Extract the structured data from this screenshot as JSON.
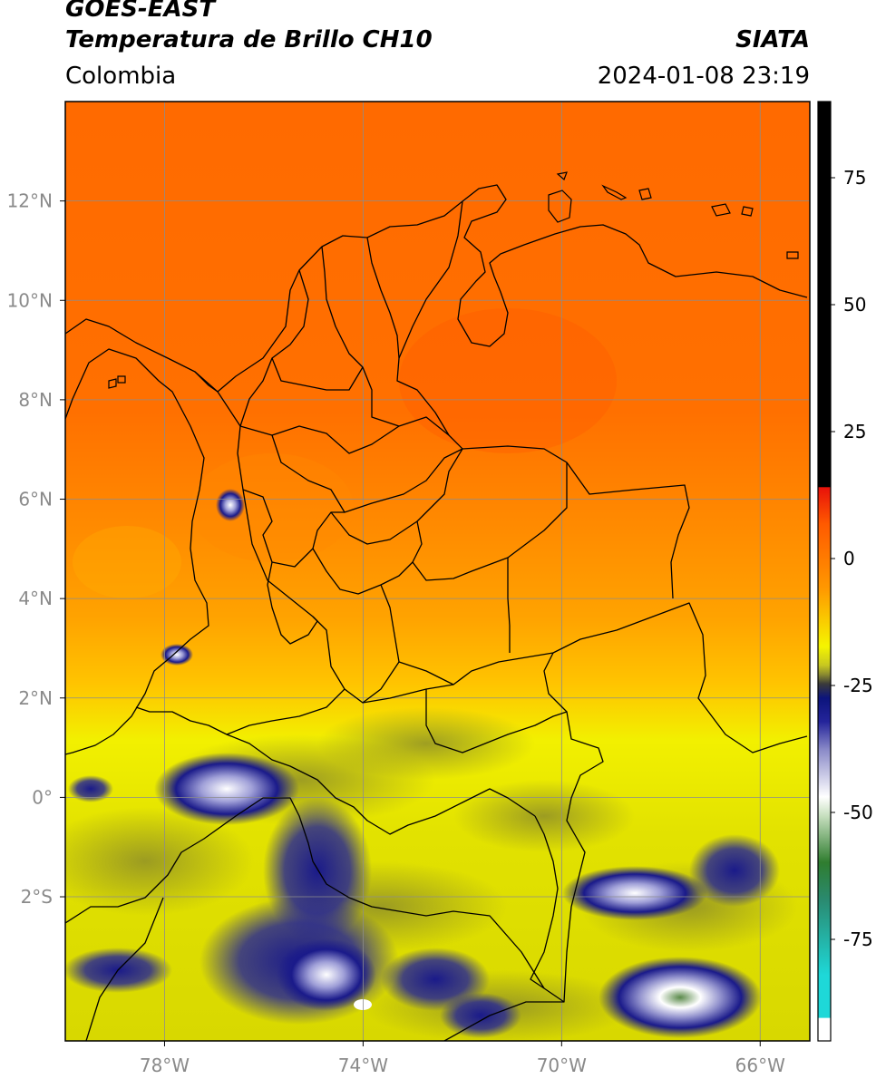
{
  "header": {
    "satellite": "GOES-EAST",
    "product": "Temperatura de Brillo CH10",
    "region": "Colombia",
    "agency": "SIATA",
    "datetime": "2024-01-08 23:19"
  },
  "map": {
    "lon_range": [
      -80,
      -65
    ],
    "lat_range": [
      -4.9,
      14
    ],
    "lat_ticks": [
      {
        "lat": 12,
        "label": "12°N"
      },
      {
        "lat": 10,
        "label": "10°N"
      },
      {
        "lat": 8,
        "label": "8°N"
      },
      {
        "lat": 6,
        "label": "6°N"
      },
      {
        "lat": 4,
        "label": "4°N"
      },
      {
        "lat": 2,
        "label": "2°N"
      },
      {
        "lat": 0,
        "label": "0°"
      },
      {
        "lat": -2,
        "label": "2°S"
      }
    ],
    "lon_ticks": [
      {
        "lon": -78,
        "label": "78°W"
      },
      {
        "lon": -74,
        "label": "74°W"
      },
      {
        "lon": -70,
        "label": "70°W"
      },
      {
        "lon": -66,
        "label": "66°W"
      }
    ]
  },
  "colorbar": {
    "range": [
      -95,
      90
    ],
    "ticks": [
      {
        "value": 75,
        "label": "75"
      },
      {
        "value": 50,
        "label": "50"
      },
      {
        "value": 25,
        "label": "25"
      },
      {
        "value": 0,
        "label": "0"
      },
      {
        "value": -25,
        "label": "-25"
      },
      {
        "value": -50,
        "label": "-50"
      },
      {
        "value": -75,
        "label": "-75"
      }
    ],
    "colors": {
      "warm_top": "#000000",
      "red": "#e8120a",
      "orange": "#ff7400",
      "yellow": "#f5f500",
      "olive": "#8a8a30",
      "navy": "#0c147c",
      "white": "#ffffff",
      "green": "#2f7d2f",
      "cyan": "#1ed8d8"
    }
  }
}
